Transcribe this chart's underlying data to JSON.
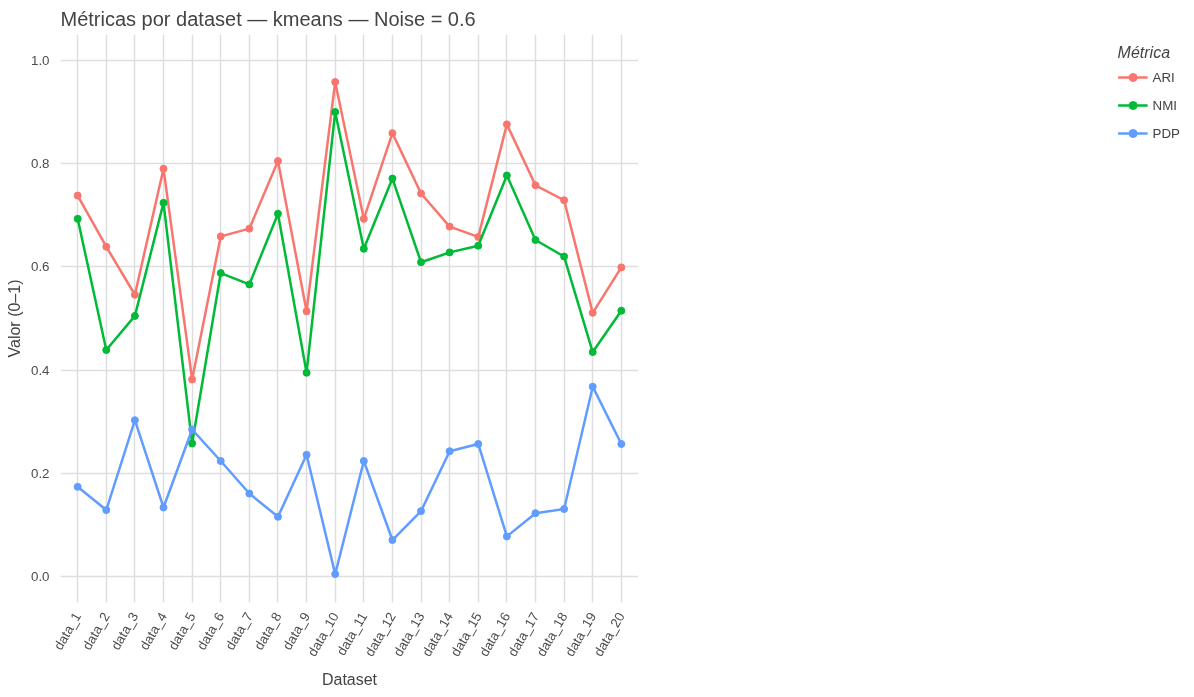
{
  "chart_data": {
    "type": "line",
    "title": "Métricas por dataset — kmeans — Noise = 0.6",
    "xlabel": "Dataset",
    "ylabel": "Valor (0–1)",
    "legend_title": "Métrica",
    "categories": [
      "data_1",
      "data_2",
      "data_3",
      "data_4",
      "data_5",
      "data_6",
      "data_7",
      "data_8",
      "data_9",
      "data_10",
      "data_11",
      "data_12",
      "data_13",
      "data_14",
      "data_15",
      "data_16",
      "data_17",
      "data_18",
      "data_19",
      "data_20"
    ],
    "series": [
      {
        "name": "ARI",
        "color": "#f8766d",
        "values": [
          0.738,
          0.639,
          0.546,
          0.79,
          0.382,
          0.659,
          0.674,
          0.805,
          0.514,
          0.958,
          0.693,
          0.859,
          0.742,
          0.678,
          0.658,
          0.876,
          0.758,
          0.729,
          0.511,
          0.599
        ]
      },
      {
        "name": "NMI",
        "color": "#00ba38",
        "values": [
          0.693,
          0.439,
          0.505,
          0.724,
          0.258,
          0.588,
          0.566,
          0.703,
          0.395,
          0.9,
          0.635,
          0.771,
          0.609,
          0.628,
          0.641,
          0.777,
          0.652,
          0.62,
          0.435,
          0.515
        ]
      },
      {
        "name": "PDP",
        "color": "#619cff",
        "values": [
          0.174,
          0.129,
          0.303,
          0.134,
          0.285,
          0.224,
          0.161,
          0.116,
          0.236,
          0.005,
          0.224,
          0.071,
          0.127,
          0.243,
          0.257,
          0.078,
          0.123,
          0.131,
          0.368,
          0.257
        ]
      }
    ],
    "ylim": [
      -0.05,
      1.05
    ],
    "yticks": [
      {
        "value": 0,
        "label": "0.0"
      },
      0.2,
      0.4,
      0.6,
      0.8,
      {
        "value": 1,
        "label": "1.0"
      }
    ],
    "grid": true,
    "legend": "right",
    "marker": "circle",
    "line_style": "solid"
  }
}
